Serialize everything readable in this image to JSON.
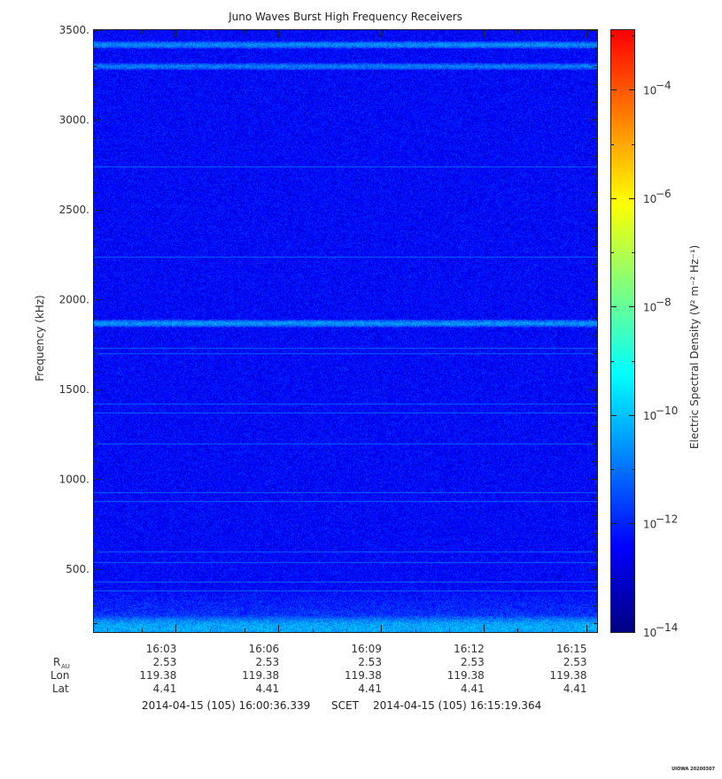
{
  "title": "Juno Waves Burst High Frequency Receivers",
  "y_axis_label": "Frequency (kHz)",
  "colorbar_label": "Electric Spectral Density (V² m⁻² Hz⁻¹)",
  "scet_label": "SCET",
  "start_time": "2014-04-15 (105) 16:00:36.339",
  "end_time": "2014-04-15 (105) 16:15:19.364",
  "stamp": "UIOWA 20200307",
  "ephemeris": {
    "labels": [
      "R",
      "Lon",
      "Lat"
    ],
    "r_sub": "AU",
    "times": [
      "16:03",
      "16:06",
      "16:09",
      "16:12",
      "16:15"
    ],
    "r": [
      "2.53",
      "2.53",
      "2.53",
      "2.53",
      "2.53"
    ],
    "lon": [
      "119.38",
      "119.38",
      "119.38",
      "119.38",
      "119.38"
    ],
    "lat": [
      "4.41",
      "4.41",
      "4.41",
      "4.41",
      "4.41"
    ]
  },
  "chart_data": {
    "type": "heatmap",
    "title": "Juno Waves Burst High Frequency Receivers",
    "ylabel": "Frequency (kHz)",
    "y_ticks": [
      "500.",
      "1000.",
      "1500.",
      "2000.",
      "2500.",
      "3000.",
      "3500."
    ],
    "y_tick_values": [
      500,
      1000,
      1500,
      2000,
      2500,
      3000,
      3500
    ],
    "ylim": [
      150,
      3500
    ],
    "x_ticks": [
      "16:03",
      "16:06",
      "16:09",
      "16:12",
      "16:15"
    ],
    "x_tick_minutes": [
      3,
      6,
      9,
      12,
      15
    ],
    "xlim_minutes": [
      0.606,
      15.323
    ],
    "colorbar": {
      "label": "Electric Spectral Density (V² m⁻² Hz⁻¹)",
      "scale": "log",
      "range_exponent": [
        -14,
        -2.9
      ],
      "tick_exponents": [
        -14,
        -12,
        -10,
        -8,
        -6,
        -4
      ],
      "colormap": [
        "#00007f",
        "#0000ff",
        "#007fff",
        "#00ffff",
        "#7fff7f",
        "#ffff00",
        "#ff7f00",
        "#ff0000"
      ]
    },
    "background_level_exponent": -12.4,
    "bands": [
      {
        "freq_khz": 3420,
        "level_exponent": -10.7
      },
      {
        "freq_khz": 3300,
        "level_exponent": -10.9
      },
      {
        "freq_khz": 1870,
        "level_exponent": -10.6
      },
      {
        "freq_khz": 175,
        "level_exponent": -10.3
      }
    ],
    "narrowband_lines_khz": [
      2740,
      2240,
      1730,
      1700,
      1420,
      1370,
      1200,
      930,
      880,
      600,
      540,
      430,
      380
    ]
  }
}
